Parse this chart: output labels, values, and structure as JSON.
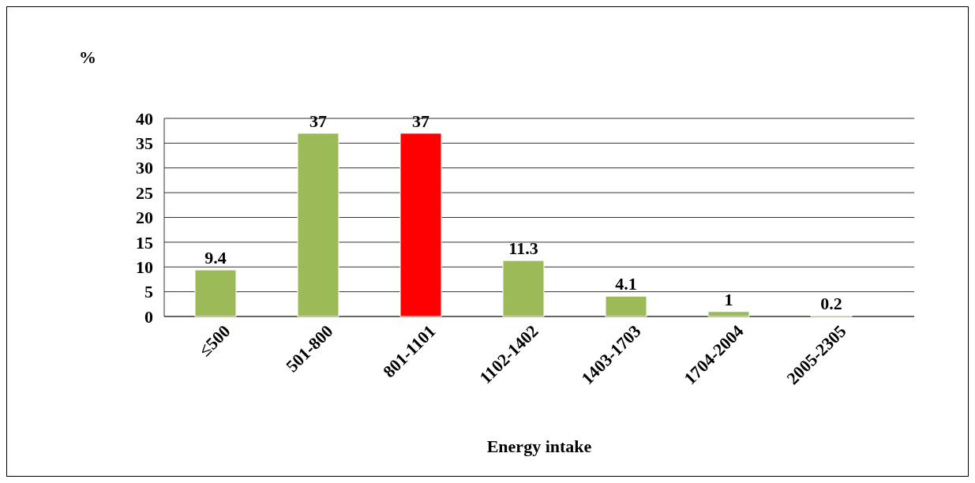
{
  "chart_data": {
    "type": "bar",
    "xlabel": "Energy intake",
    "ylabel": "%",
    "categories": [
      "≤500",
      "501-800",
      "801-1101",
      "1102-1402",
      "1403-1703",
      "1704-2004",
      "2005-2305"
    ],
    "values": [
      9.4,
      37,
      37,
      11.3,
      4.1,
      1,
      0.2
    ],
    "colors": [
      "#9bbb59",
      "#9bbb59",
      "#ff0000",
      "#9bbb59",
      "#9bbb59",
      "#9bbb59",
      "#9bbb59"
    ],
    "ylim": [
      0,
      40
    ],
    "yticks": [
      0,
      5,
      10,
      15,
      20,
      25,
      30,
      35,
      40
    ],
    "grid": "y",
    "data_labels": true
  }
}
